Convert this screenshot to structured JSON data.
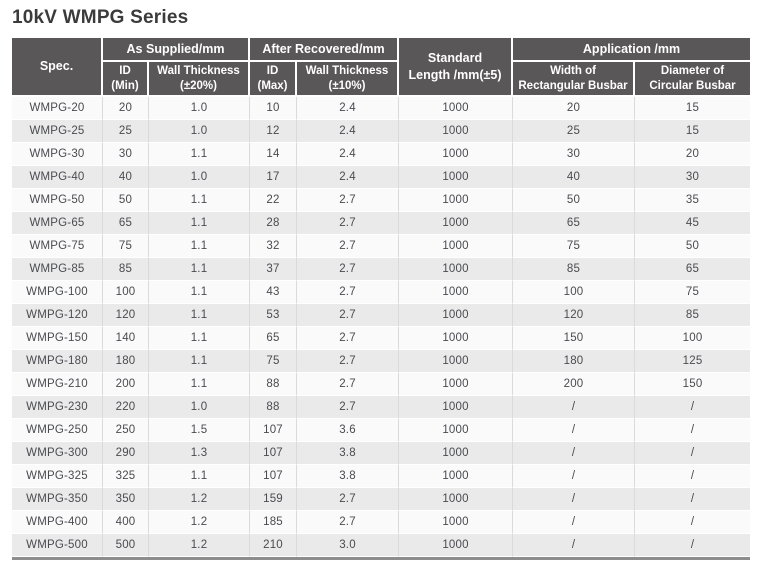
{
  "page": {
    "title": "10kV WMPG Series"
  },
  "colors": {
    "header_bg": "#595757",
    "header_text": "#ffffff",
    "row_odd_bg": "#fafafa",
    "row_even_bg": "#eaeaea",
    "body_text": "#4a4b50",
    "column_divider": "#dadada",
    "table_bottom_border": "#8e8d8d",
    "title_text": "#3b3b3b"
  },
  "table": {
    "header": {
      "spec": "Spec.",
      "group_as_supplied": "As Supplied/mm",
      "group_after_recovered": "After Recovered/mm",
      "standard_length": "Standard\nLength /mm(±5)",
      "group_application": "Application /mm",
      "sub": [
        "ID\n(Min)",
        "Wall Thickness\n(±20%)",
        "ID\n(Max)",
        "Wall Thickness\n(±10%)",
        "Width of\nRectangular Busbar",
        "Diameter of\nCircular Busbar"
      ]
    },
    "rows": [
      [
        "WMPG-20",
        "20",
        "1.0",
        "10",
        "2.4",
        "1000",
        "20",
        "15"
      ],
      [
        "WMPG-25",
        "25",
        "1.0",
        "12",
        "2.4",
        "1000",
        "25",
        "15"
      ],
      [
        "WMPG-30",
        "30",
        "1.1",
        "14",
        "2.4",
        "1000",
        "30",
        "20"
      ],
      [
        "WMPG-40",
        "40",
        "1.0",
        "17",
        "2.4",
        "1000",
        "40",
        "30"
      ],
      [
        "WMPG-50",
        "50",
        "1.1",
        "22",
        "2.7",
        "1000",
        "50",
        "35"
      ],
      [
        "WMPG-65",
        "65",
        "1.1",
        "28",
        "2.7",
        "1000",
        "65",
        "45"
      ],
      [
        "WMPG-75",
        "75",
        "1.1",
        "32",
        "2.7",
        "1000",
        "75",
        "50"
      ],
      [
        "WMPG-85",
        "85",
        "1.1",
        "37",
        "2.7",
        "1000",
        "85",
        "65"
      ],
      [
        "WMPG-100",
        "100",
        "1.1",
        "43",
        "2.7",
        "1000",
        "100",
        "75"
      ],
      [
        "WMPG-120",
        "120",
        "1.1",
        "53",
        "2.7",
        "1000",
        "120",
        "85"
      ],
      [
        "WMPG-150",
        "140",
        "1.1",
        "65",
        "2.7",
        "1000",
        "150",
        "100"
      ],
      [
        "WMPG-180",
        "180",
        "1.1",
        "75",
        "2.7",
        "1000",
        "180",
        "125"
      ],
      [
        "WMPG-210",
        "200",
        "1.1",
        "88",
        "2.7",
        "1000",
        "200",
        "150"
      ],
      [
        "WMPG-230",
        "220",
        "1.0",
        "88",
        "2.7",
        "1000",
        "/",
        "/"
      ],
      [
        "WMPG-250",
        "250",
        "1.5",
        "107",
        "3.6",
        "1000",
        "/",
        "/"
      ],
      [
        "WMPG-300",
        "290",
        "1.3",
        "107",
        "3.8",
        "1000",
        "/",
        "/"
      ],
      [
        "WMPG-325",
        "325",
        "1.1",
        "107",
        "3.8",
        "1000",
        "/",
        "/"
      ],
      [
        "WMPG-350",
        "350",
        "1.2",
        "159",
        "2.7",
        "1000",
        "/",
        "/"
      ],
      [
        "WMPG-400",
        "400",
        "1.2",
        "185",
        "2.7",
        "1000",
        "/",
        "/"
      ],
      [
        "WMPG-500",
        "500",
        "1.2",
        "210",
        "3.0",
        "1000",
        "/",
        "/"
      ]
    ]
  }
}
